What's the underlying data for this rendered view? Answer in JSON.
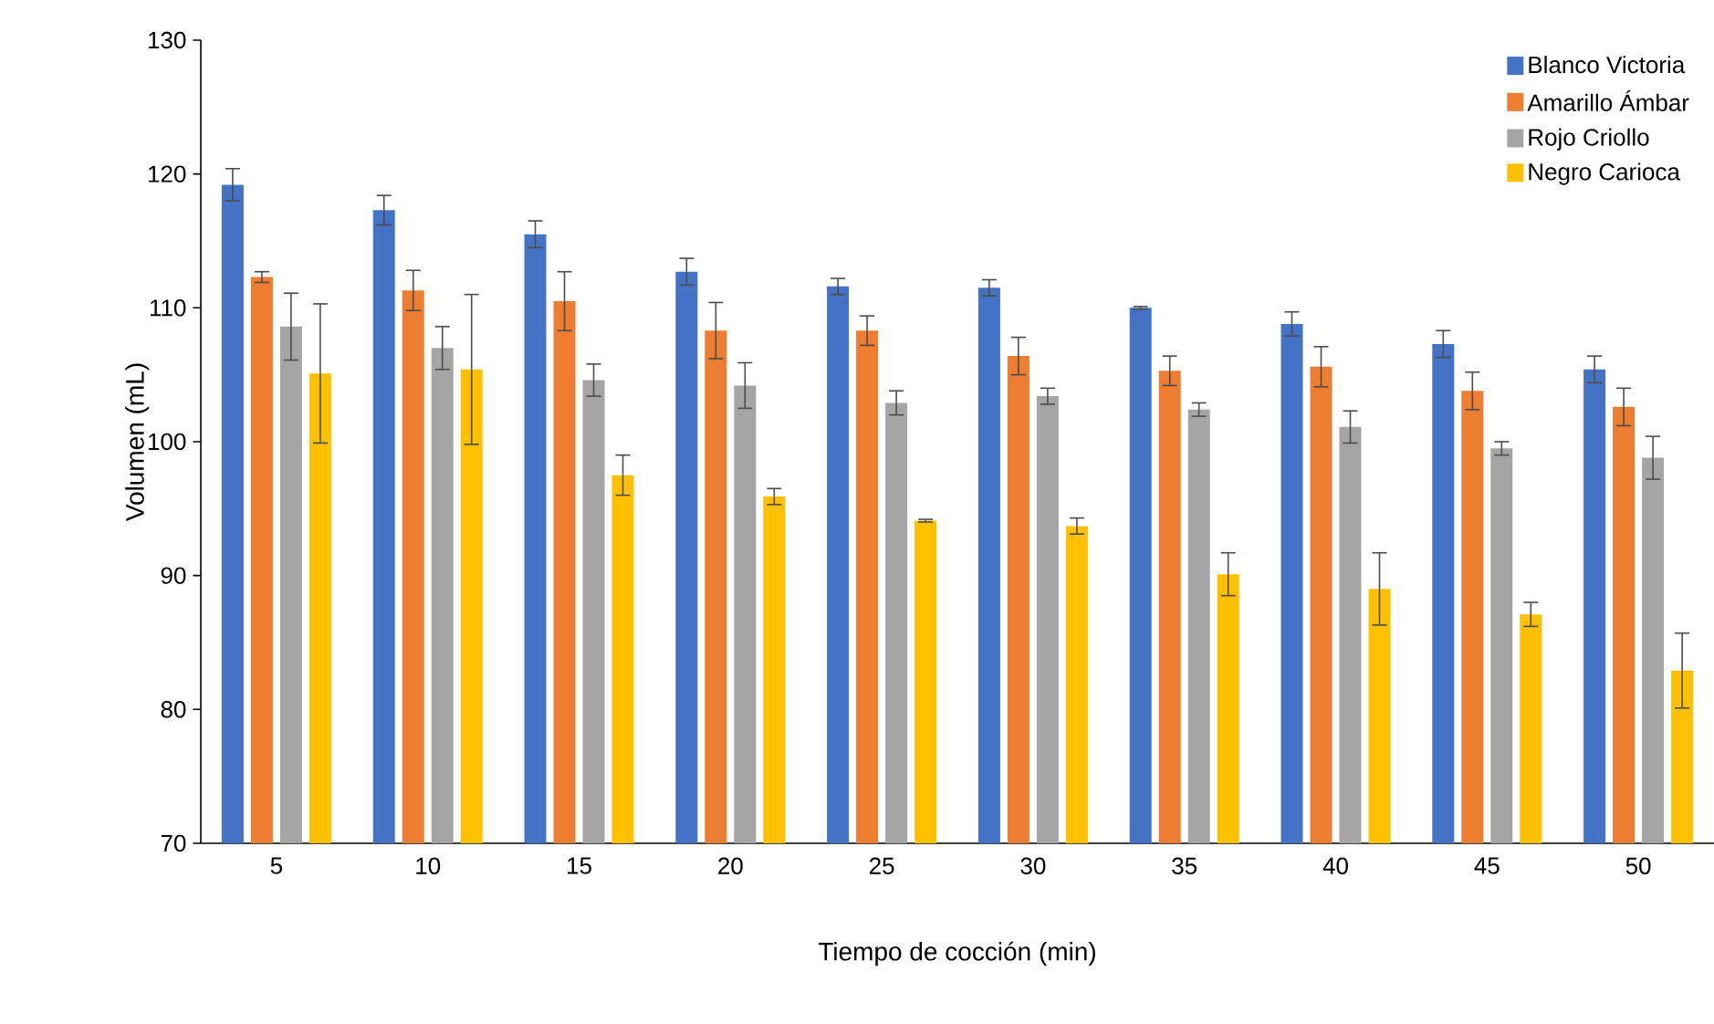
{
  "chart_data": {
    "type": "bar",
    "xlabel": "Tiempo de cocción (min)",
    "ylabel": "Volumen (mL)",
    "categories": [
      "5",
      "10",
      "15",
      "20",
      "25",
      "30",
      "35",
      "40",
      "45",
      "50"
    ],
    "ylim": [
      70,
      130
    ],
    "yticks": [
      70,
      80,
      90,
      100,
      110,
      120,
      130
    ],
    "legend": "top right",
    "series": [
      {
        "name": "Blanco Victoria",
        "color": "#4472c4",
        "values": [
          119.2,
          117.3,
          115.5,
          112.7,
          111.6,
          111.5,
          110.0,
          108.8,
          107.3,
          105.4
        ],
        "errors": [
          1.2,
          1.1,
          1.0,
          1.0,
          0.6,
          0.6,
          0.1,
          0.9,
          1.0,
          1.0
        ]
      },
      {
        "name": "Amarillo Ámbar",
        "color": "#ed7d31",
        "values": [
          112.3,
          111.3,
          110.5,
          108.3,
          108.3,
          106.4,
          105.3,
          105.6,
          103.8,
          102.6
        ],
        "errors": [
          0.4,
          1.5,
          2.2,
          2.1,
          1.1,
          1.4,
          1.1,
          1.5,
          1.4,
          1.4
        ]
      },
      {
        "name": "Rojo Criollo",
        "color": "#a5a5a5",
        "values": [
          108.6,
          107.0,
          104.6,
          104.2,
          102.9,
          103.4,
          102.4,
          101.1,
          99.5,
          98.8
        ],
        "errors": [
          2.5,
          1.6,
          1.2,
          1.7,
          0.9,
          0.6,
          0.5,
          1.2,
          0.5,
          1.6
        ]
      },
      {
        "name": "Negro Carioca",
        "color": "#ffc000",
        "values": [
          105.1,
          105.4,
          97.5,
          95.9,
          94.1,
          93.7,
          90.1,
          89.0,
          87.1,
          82.9
        ],
        "errors": [
          5.2,
          5.6,
          1.5,
          0.6,
          0.1,
          0.6,
          1.6,
          2.7,
          0.9,
          2.8
        ]
      }
    ]
  }
}
